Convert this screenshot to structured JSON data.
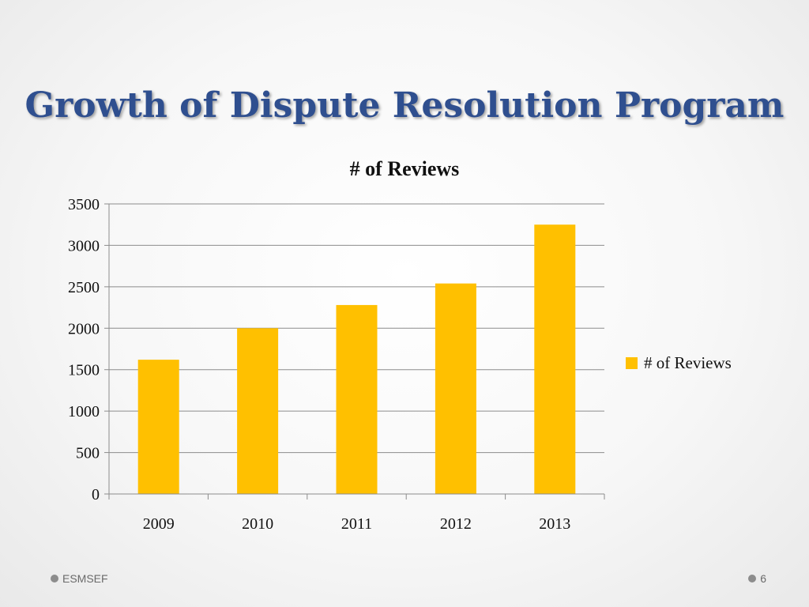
{
  "slide": {
    "title": "Growth of Dispute Resolution Program",
    "footer_left": "ESMSEF",
    "page_number": "6"
  },
  "colors": {
    "bar": "#ffc000",
    "title": "#2f4f8f",
    "grid": "#8c8c8c"
  },
  "chart_data": {
    "type": "bar",
    "title": "# of Reviews",
    "categories": [
      "2009",
      "2010",
      "2011",
      "2012",
      "2013"
    ],
    "series": [
      {
        "name": "# of Reviews",
        "values": [
          1620,
          2000,
          2280,
          2540,
          3250
        ]
      }
    ],
    "ylim": [
      0,
      3500
    ],
    "yticks": [
      0,
      500,
      1000,
      1500,
      2000,
      2500,
      3000,
      3500
    ],
    "grid": true,
    "legend": "right",
    "xlabel": "",
    "ylabel": ""
  }
}
